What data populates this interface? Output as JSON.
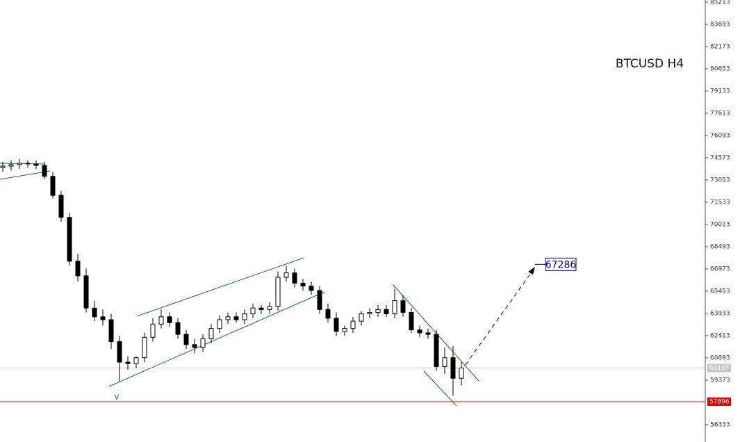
{
  "chart_data": {
    "type": "candlestick",
    "title": "BTCUSD H4",
    "ylim": [
      55140,
      85356
    ],
    "yticks": [
      85213,
      83693,
      82173,
      80653,
      79133,
      77613,
      76093,
      74573,
      73053,
      71533,
      70013,
      68493,
      66973,
      65453,
      63933,
      62413,
      60893,
      59373,
      56333
    ],
    "open": [
      73900,
      74000,
      74100,
      74200,
      74150,
      74050,
      73300,
      72000,
      70500,
      67500,
      66500,
      64300,
      63700,
      63500,
      62000,
      60600,
      60500,
      60900,
      62300,
      63200,
      63700,
      63300,
      62500,
      61800,
      61600,
      62200,
      62900,
      63500,
      63700,
      63500,
      63900,
      64300,
      64200,
      64400,
      66400,
      66700,
      66000,
      65800,
      65500,
      64200,
      63600,
      62700,
      62900,
      63400,
      63900,
      64000,
      64200,
      63900,
      64800,
      64000,
      62800,
      62600,
      62500,
      60300,
      60900,
      59500
    ],
    "high": [
      74300,
      74400,
      74500,
      74400,
      74400,
      74300,
      73600,
      72300,
      70800,
      68000,
      67000,
      64800,
      64200,
      63900,
      62400,
      61000,
      61000,
      62600,
      63600,
      64200,
      64000,
      63600,
      62800,
      62200,
      62500,
      63200,
      63800,
      64000,
      64000,
      64200,
      64600,
      64500,
      64700,
      66800,
      67200,
      67000,
      66300,
      66100,
      65800,
      64600,
      64000,
      63100,
      63700,
      64100,
      64300,
      64500,
      64500,
      65600,
      65200,
      64300,
      63100,
      62900,
      62800,
      61600,
      61700,
      60600
    ],
    "low": [
      73600,
      73700,
      73800,
      73900,
      73800,
      73100,
      71800,
      70200,
      67200,
      66100,
      64000,
      63400,
      63100,
      61500,
      59300,
      60100,
      60200,
      60600,
      62000,
      62900,
      63000,
      62200,
      61500,
      61200,
      61300,
      61900,
      62600,
      63200,
      63300,
      63200,
      63600,
      63900,
      63900,
      64100,
      66100,
      65700,
      65500,
      65200,
      63900,
      63300,
      62400,
      62400,
      62600,
      63100,
      63600,
      63700,
      63700,
      63600,
      63700,
      62600,
      62300,
      62200,
      60000,
      59800,
      58300,
      59000
    ],
    "close": [
      74000,
      74100,
      74200,
      74150,
      74050,
      73300,
      72000,
      70500,
      67500,
      66500,
      64300,
      63700,
      63500,
      62000,
      60600,
      60500,
      60900,
      62300,
      63200,
      63700,
      63300,
      62500,
      61800,
      61600,
      62200,
      62900,
      63500,
      63700,
      63500,
      63900,
      64300,
      64200,
      64400,
      66400,
      66700,
      66000,
      65800,
      65500,
      64200,
      63600,
      62700,
      62900,
      63400,
      63900,
      64000,
      64200,
      63900,
      64800,
      64000,
      62800,
      62600,
      62500,
      60300,
      60900,
      59500,
      60200
    ],
    "current_price": 60197,
    "support": 57896,
    "target": 67286,
    "wave_label": "v"
  }
}
